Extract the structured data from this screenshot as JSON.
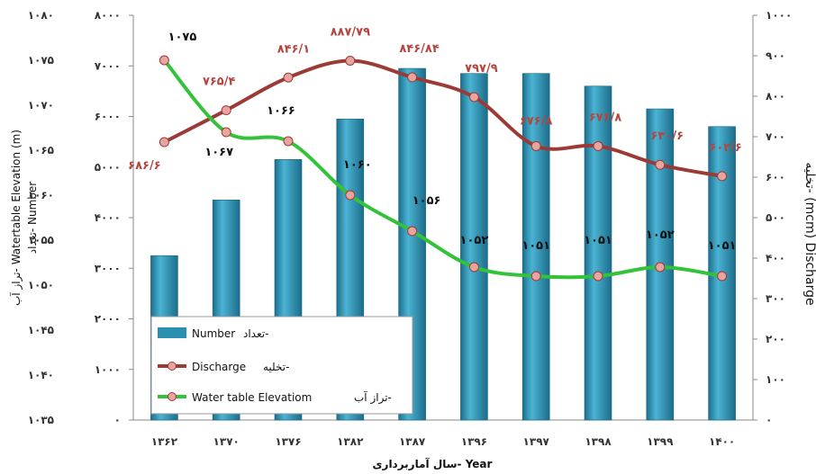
{
  "chart_data": {
    "type": "bar+line",
    "categories": [
      "۱۳۶۲",
      "۱۳۷۰",
      "۱۳۷۶",
      "۱۳۸۲",
      "۱۳۸۷",
      "۱۳۹۶",
      "۱۳۹۷",
      "۱۳۹۸",
      "۱۳۹۹",
      "۱۴۰۰"
    ],
    "xlabel": "سال آماربرداری- Year",
    "y_left_outer": {
      "label": "تراز آب- Watertable Elevation (m)",
      "range": [
        1035,
        1080
      ],
      "tick_labels": [
        "۱۰۳۵",
        "۱۰۴۰",
        "۱۰۴۵",
        "۱۰۵۰",
        "۱۰۵۵",
        "۱۰۶۰",
        "۱۰۶۵",
        "۱۰۷۰",
        "۱۰۷۵",
        "۱۰۸۰"
      ]
    },
    "y_left_inner": {
      "label": "تعداد- Number",
      "range": [
        0,
        8000
      ],
      "tick_labels": [
        "۰",
        "۱۰۰۰",
        "۲۰۰۰",
        "۳۰۰۰",
        "۴۰۰۰",
        "۵۰۰۰",
        "۶۰۰۰",
        "۷۰۰۰",
        "۸۰۰۰"
      ]
    },
    "y_right": {
      "label": "تخلیه- (mcm) Discharge",
      "range": [
        0,
        1000
      ],
      "tick_labels": [
        "۰",
        "۱۰۰",
        "۲۰۰",
        "۳۰۰",
        "۴۰۰",
        "۵۰۰",
        "۶۰۰",
        "۷۰۰",
        "۸۰۰",
        "۹۰۰",
        "۱۰۰۰"
      ]
    },
    "series": [
      {
        "name": "تعداد- Number",
        "type": "bar",
        "axis": "y_left_inner",
        "color": "#2a90b0",
        "values": [
          3250,
          4350,
          5150,
          5950,
          6950,
          6850,
          6850,
          6600,
          6150,
          5800
        ]
      },
      {
        "name": "تخلیه- Discharge",
        "type": "line",
        "axis": "y_right",
        "color": "#9c3a36",
        "values": [
          686.6,
          765.4,
          846.1,
          887.79,
          846.84,
          797.9,
          676.8,
          676.8,
          630.6,
          602.6
        ],
        "labels": [
          "۶۸۶/۶",
          "۷۶۵/۴",
          "۸۴۶/۱",
          "۸۸۷/۷۹",
          "۸۴۶/۸۴",
          "۷۹۷/۹",
          "۶۷۶/۸",
          "۶۷۶/۸",
          "۶۳۰/۶",
          "۶۰۲/۶"
        ]
      },
      {
        "name": "تراز آب- Water table Elevatiom",
        "type": "line",
        "axis": "y_left_outer",
        "color": "#33c23a",
        "values": [
          1075,
          1067,
          1066,
          1060,
          1056,
          1052,
          1051,
          1051,
          1052,
          1051
        ],
        "labels": [
          "۱۰۷۵",
          "۱۰۶۷",
          "۱۰۶۶",
          "۱۰۶۰",
          "۱۰۵۶",
          "۱۰۵۲",
          "۱۰۵۱",
          "۱۰۵۱",
          "۱۰۵۲",
          "۱۰۵۱"
        ]
      }
    ],
    "legend": {
      "placement": "bottom-left",
      "items": [
        {
          "latin": "Number",
          "farsi": "تعداد-"
        },
        {
          "latin": "Discharge",
          "farsi": "تخلیه-"
        },
        {
          "latin": "Water table Elevatiom",
          "farsi": "تراز آب-"
        }
      ]
    },
    "grid": false
  }
}
